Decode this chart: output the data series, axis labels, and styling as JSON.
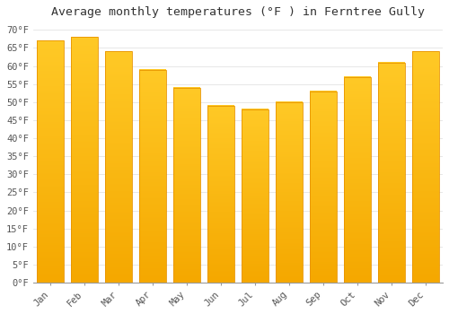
{
  "title": "Average monthly temperatures (°F ) in Ferntree Gully",
  "months": [
    "Jan",
    "Feb",
    "Mar",
    "Apr",
    "May",
    "Jun",
    "Jul",
    "Aug",
    "Sep",
    "Oct",
    "Nov",
    "Dec"
  ],
  "values": [
    67,
    68,
    64,
    59,
    54,
    49,
    48,
    50,
    53,
    57,
    61,
    64
  ],
  "bar_color_top": "#FFC926",
  "bar_color_bottom": "#F5A800",
  "bar_edge_color": "#E89400",
  "background_color": "#FFFFFF",
  "grid_color": "#DDDDDD",
  "yticks": [
    0,
    5,
    10,
    15,
    20,
    25,
    30,
    35,
    40,
    45,
    50,
    55,
    60,
    65,
    70
  ],
  "ylim": [
    0,
    72
  ],
  "ylabel_format": "°F",
  "title_fontsize": 9.5,
  "tick_fontsize": 7.5,
  "font_family": "monospace"
}
